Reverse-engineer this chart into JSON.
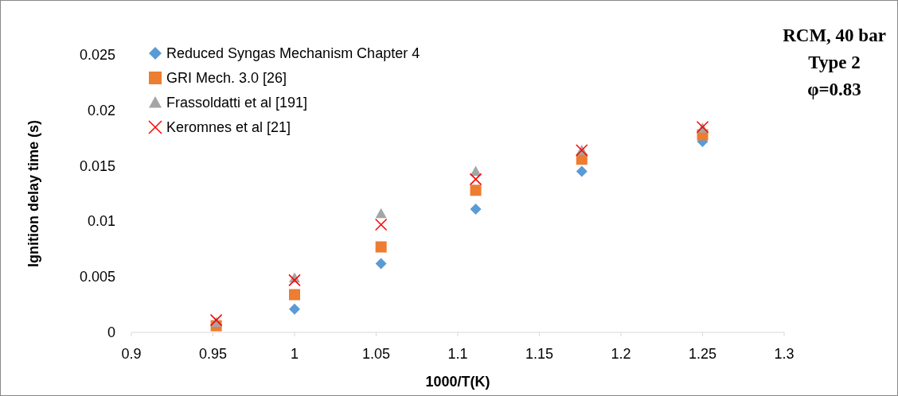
{
  "chart_data": {
    "type": "scatter",
    "xlabel": "1000/T(K)",
    "ylabel": "Ignition delay time (s)",
    "x": [
      0.952,
      1.0,
      1.053,
      1.111,
      1.176,
      1.25
    ],
    "series": [
      {
        "name": "Reduced Syngas Mechanism Chapter 4",
        "color": "#5b9bd5",
        "marker": "diamond",
        "values": [
          null,
          0.0021,
          0.0062,
          0.0111,
          0.0145,
          0.0172
        ]
      },
      {
        "name": "GRI Mech. 3.0 [26]",
        "color": "#ed7d31",
        "marker": "square",
        "values": [
          0.0006,
          0.0034,
          0.0077,
          0.0128,
          0.0156,
          0.0178
        ]
      },
      {
        "name": "Frassoldatti et al [191]",
        "color": "#a5a5a5",
        "marker": "triangle",
        "values": [
          0.0009,
          0.0049,
          0.0107,
          0.0145,
          0.0164,
          0.0184
        ]
      },
      {
        "name": "Keromnes et al [21]",
        "color": "#ff0000",
        "marker": "cross",
        "values": [
          0.0011,
          0.0047,
          0.0097,
          0.0138,
          0.0164,
          0.0185
        ]
      }
    ],
    "xlim": [
      0.9,
      1.3
    ],
    "xticks": [
      0.9,
      0.95,
      1,
      1.05,
      1.1,
      1.15,
      1.2,
      1.25,
      1.3
    ],
    "ylim": [
      0,
      0.025
    ],
    "yticks": [
      0,
      0.005,
      0.01,
      0.015,
      0.02,
      0.025
    ],
    "grid": false,
    "legend": "top left",
    "annotations": [
      "RCM, 40 bar",
      "Type 2",
      "φ=0.83"
    ]
  }
}
